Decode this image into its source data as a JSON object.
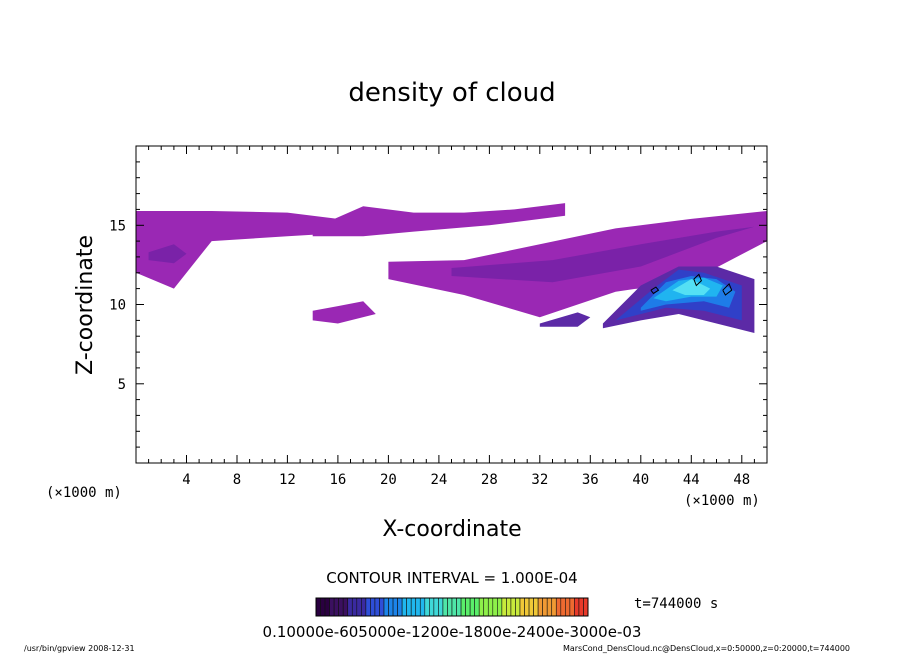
{
  "chart_data": {
    "type": "heatmap",
    "title": "density of cloud",
    "xlabel": "X-coordinate",
    "ylabel": "Z-coordinate",
    "x_unit": "(×1000 m)",
    "y_unit": "(×1000 m)",
    "xlim": [
      0,
      50
    ],
    "ylim": [
      0,
      20
    ],
    "x_ticks": [
      4,
      8,
      12,
      16,
      20,
      24,
      28,
      32,
      36,
      40,
      44,
      48
    ],
    "y_ticks": [
      5,
      10,
      15
    ],
    "grid": false,
    "contour_interval_text": "CONTOUR INTERVAL = 1.000E-04",
    "time_text": "t=744000 s",
    "colorbar_labels_text": "0.10000e-605000e-1200e-1800e-2400e-3000e-03",
    "colorbar_colors": [
      "#2a0040",
      "#3b1060",
      "#3a2aa0",
      "#2e4ed8",
      "#1c84ea",
      "#20b7ee",
      "#3fd8d8",
      "#4fe6a8",
      "#5aee6a",
      "#8ef04a",
      "#c8ea3c",
      "#f0c838",
      "#f09a34",
      "#ee6a30",
      "#e83a2a"
    ],
    "fill_colors": {
      "low": "#9a28b4",
      "low_mid": "#7a22a8",
      "mid": "#5c2aa6",
      "mid_high": "#3040c8",
      "high": "#1e7ce8",
      "higher": "#20b4f0",
      "peak": "#54e0f4"
    },
    "clouds": [
      {
        "level": "low",
        "x": [
          0,
          6,
          12,
          16,
          16,
          12,
          6,
          3,
          0
        ],
        "z": [
          15.9,
          15.9,
          15.8,
          15.4,
          14.5,
          14.3,
          14.0,
          11.0,
          12.0
        ]
      },
      {
        "level": "low",
        "x": [
          14,
          18,
          22,
          26,
          30,
          34,
          34,
          28,
          22,
          18,
          14
        ],
        "z": [
          14.8,
          16.2,
          15.8,
          15.8,
          16.0,
          16.4,
          15.6,
          15.0,
          14.6,
          14.3,
          14.3
        ]
      },
      {
        "level": "low",
        "x": [
          20,
          26,
          32,
          38,
          44,
          50,
          50,
          44,
          38,
          32,
          26,
          20
        ],
        "z": [
          12.7,
          12.8,
          13.8,
          14.8,
          15.4,
          15.9,
          14.0,
          11.5,
          10.8,
          9.2,
          10.6,
          11.6
        ]
      },
      {
        "level": "low",
        "x": [
          14,
          16,
          18,
          19,
          16,
          14
        ],
        "z": [
          9.6,
          9.9,
          10.2,
          9.4,
          8.8,
          9.0
        ]
      },
      {
        "level": "low_mid",
        "x": [
          1,
          3,
          4,
          3,
          1
        ],
        "z": [
          13.3,
          13.8,
          13.2,
          12.6,
          12.8
        ]
      },
      {
        "level": "low_mid",
        "x": [
          25,
          33,
          40,
          46,
          49,
          46,
          40,
          33,
          25
        ],
        "z": [
          12.3,
          12.8,
          13.8,
          14.6,
          14.9,
          14.2,
          12.4,
          11.4,
          11.8
        ]
      },
      {
        "level": "mid",
        "x": [
          32,
          35,
          36,
          35,
          32
        ],
        "z": [
          8.8,
          9.5,
          9.2,
          8.6,
          8.6
        ]
      },
      {
        "level": "mid",
        "x": [
          37,
          40,
          43,
          46,
          49,
          49,
          46,
          43,
          40,
          37
        ],
        "z": [
          8.8,
          11.2,
          12.4,
          12.4,
          11.6,
          8.2,
          8.8,
          9.4,
          9.0,
          8.5
        ]
      },
      {
        "level": "mid_high",
        "x": [
          38,
          41,
          43,
          45,
          48,
          48,
          45,
          42,
          39
        ],
        "z": [
          9.0,
          11.0,
          12.2,
          12.0,
          11.2,
          9.0,
          9.6,
          9.8,
          9.2
        ]
      },
      {
        "level": "high",
        "x": [
          40,
          42,
          44,
          46,
          47.5,
          47,
          45,
          42,
          40
        ],
        "z": [
          9.8,
          11.4,
          11.8,
          11.6,
          10.8,
          9.8,
          10.2,
          10.0,
          9.6
        ]
      },
      {
        "level": "higher",
        "x": [
          41,
          43,
          45,
          46.5,
          46,
          44,
          42
        ],
        "z": [
          10.4,
          11.5,
          11.7,
          11.2,
          10.5,
          10.5,
          10.2
        ]
      },
      {
        "level": "peak",
        "x": [
          42.5,
          44,
          45.5,
          45,
          43.5
        ],
        "z": [
          10.9,
          11.6,
          11.0,
          10.6,
          10.6
        ]
      }
    ],
    "contour_lines": [
      {
        "x": [
          40.8,
          41.2,
          41.4,
          41.0,
          40.8
        ],
        "z": [
          10.9,
          11.1,
          10.9,
          10.7,
          10.9
        ]
      },
      {
        "x": [
          44.2,
          44.6,
          44.8,
          44.4,
          44.2
        ],
        "z": [
          11.6,
          11.9,
          11.5,
          11.2,
          11.6
        ]
      },
      {
        "x": [
          46.5,
          47.0,
          47.2,
          46.7,
          46.5
        ],
        "z": [
          10.9,
          11.3,
          10.9,
          10.6,
          10.9
        ]
      }
    ]
  },
  "footer": {
    "left_text": "/usr/bin/gpview   2008-12-31",
    "right_text": "MarsCond_DensCloud.nc@DensCloud,x=0:50000,z=0:20000,t=744000"
  }
}
